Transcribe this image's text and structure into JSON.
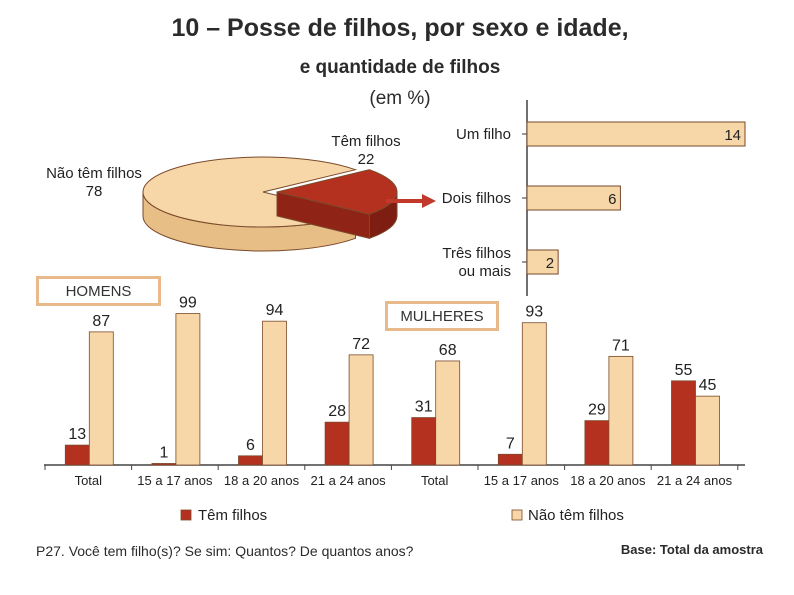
{
  "header": {
    "title": "10 – Posse de filhos, por sexo e idade,",
    "subtitle": "e quantidade de filhos",
    "unit": "(em %)"
  },
  "colors": {
    "tem": "#b5311f",
    "nao_tem": "#f7d7a8",
    "outline": "#7a4a2a",
    "box_border": "#e8b98a",
    "arrow": "#c0392b"
  },
  "chart_data": [
    {
      "type": "pie",
      "labels": [
        "Não têm filhos",
        "Têm filhos"
      ],
      "values": [
        78,
        22
      ]
    },
    {
      "type": "bar",
      "orientation": "horizontal",
      "categories": [
        "Um filho",
        "Dois filhos",
        "Três filhos ou mais"
      ],
      "category_lines": [
        [
          "Um filho"
        ],
        [
          "Dois filhos"
        ],
        [
          "Três filhos",
          "ou mais"
        ]
      ],
      "values": [
        14,
        6,
        2
      ]
    },
    {
      "type": "bar",
      "groups": [
        {
          "label": "HOMENS",
          "categories": [
            "Total",
            "15 a 17 anos",
            "18 a 20 anos",
            "21 a 24 anos"
          ]
        },
        {
          "label": "MULHERES",
          "categories": [
            "Total",
            "15 a 17 anos",
            "18 a 20 anos",
            "21 a 24 anos"
          ]
        }
      ],
      "categories": [
        "Total",
        "15 a 17 anos",
        "18 a 20 anos",
        "21 a 24 anos",
        "Total",
        "15 a 17 anos",
        "18 a 20 anos",
        "21 a 24 anos"
      ],
      "series": [
        {
          "name": "Têm filhos",
          "values": [
            13,
            1,
            6,
            28,
            31,
            7,
            29,
            55
          ]
        },
        {
          "name": "Não têm filhos",
          "values": [
            87,
            99,
            94,
            72,
            68,
            93,
            71,
            45
          ]
        }
      ],
      "ylim": [
        0,
        100
      ]
    }
  ],
  "labels": {
    "men_box": "HOMENS",
    "women_box": "MULHERES",
    "pie_tem_name": "Têm filhos",
    "pie_tem_value": "22",
    "pie_nao_name": "Não têm filhos",
    "pie_nao_value": "78"
  },
  "footer": {
    "question": "P27.  Você tem filho(s)?  Se  sim: Quantos? De quantos anos?",
    "base": "Base: Total da amostra"
  }
}
